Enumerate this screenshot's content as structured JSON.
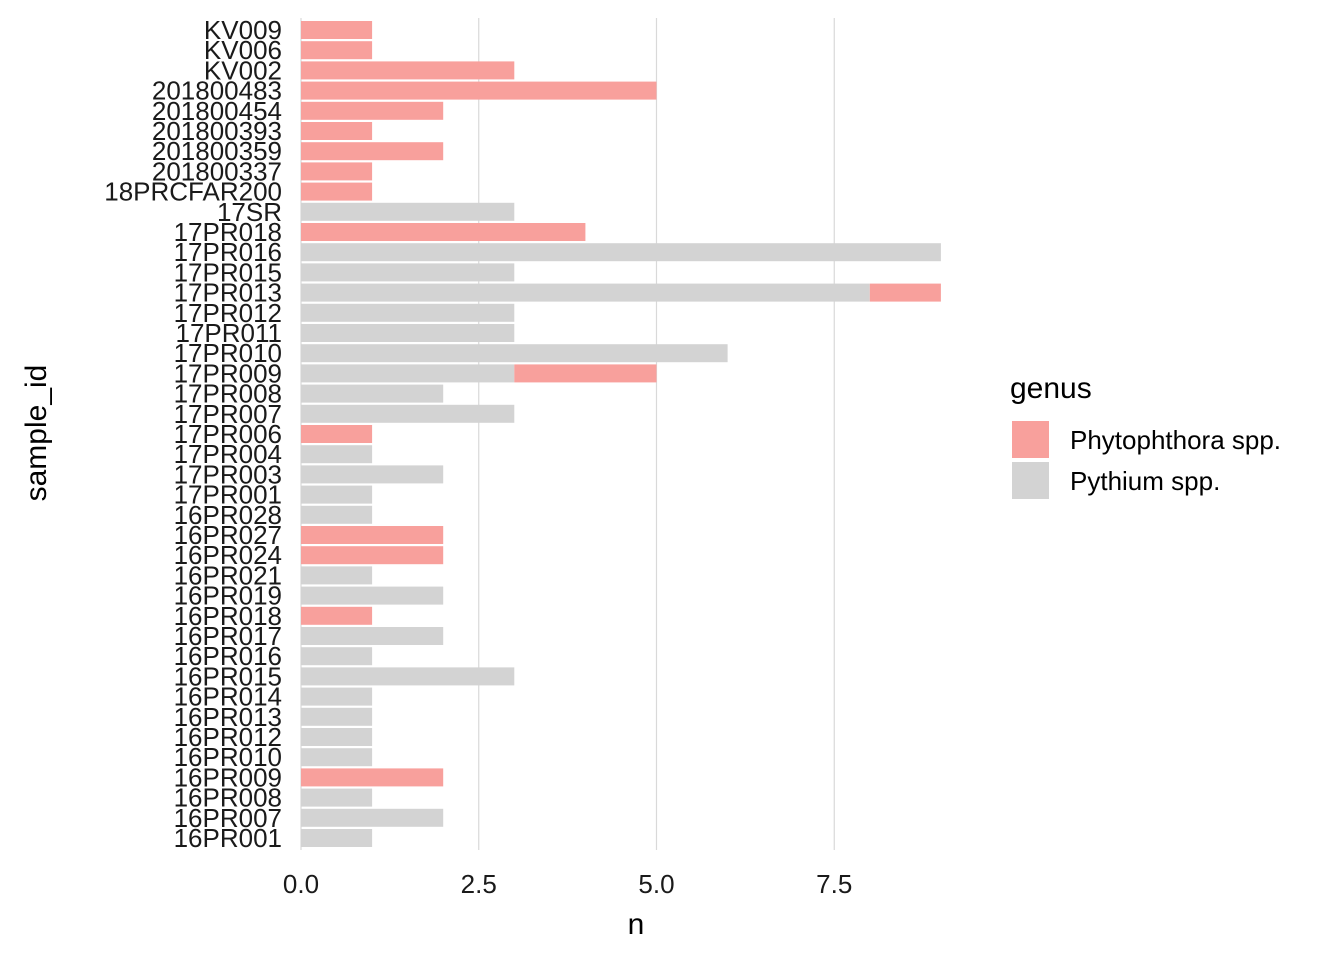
{
  "chart_data": {
    "type": "bar",
    "orientation": "horizontal",
    "stacked": true,
    "xlabel": "n",
    "ylabel": "sample_id",
    "xlim": [
      0,
      9
    ],
    "x_ticks": [
      0,
      2.5,
      5,
      7.5
    ],
    "x_tick_labels": [
      "0.0",
      "2.5",
      "5.0",
      "7.5"
    ],
    "grid": "vertical major",
    "legend_position": "right",
    "legend_title": "genus",
    "categories": [
      "KV009",
      "KV006",
      "KV002",
      "201800483",
      "201800454",
      "201800393",
      "201800359",
      "201800337",
      "18PRCFAR200",
      "17SR",
      "17PR018",
      "17PR016",
      "17PR015",
      "17PR013",
      "17PR012",
      "17PR011",
      "17PR010",
      "17PR009",
      "17PR008",
      "17PR007",
      "17PR006",
      "17PR004",
      "17PR003",
      "17PR001",
      "16PR028",
      "16PR027",
      "16PR024",
      "16PR021",
      "16PR019",
      "16PR018",
      "16PR017",
      "16PR016",
      "16PR015",
      "16PR014",
      "16PR013",
      "16PR012",
      "16PR010",
      "16PR009",
      "16PR008",
      "16PR007",
      "16PR001"
    ],
    "series": [
      {
        "name": "Pythium spp.",
        "color": "#d3d3d3",
        "values": [
          0,
          0,
          0,
          0,
          0,
          0,
          0,
          0,
          0,
          3,
          0,
          9,
          3,
          8,
          3,
          3,
          6,
          3,
          2,
          3,
          0,
          1,
          2,
          1,
          1,
          0,
          0,
          1,
          2,
          0,
          2,
          1,
          3,
          1,
          1,
          1,
          1,
          0,
          1,
          2,
          1
        ]
      },
      {
        "name": "Phytophthora spp.",
        "color": "#f8a09c",
        "values": [
          1,
          1,
          3,
          5,
          2,
          1,
          2,
          1,
          1,
          0,
          4,
          0,
          0,
          1,
          0,
          0,
          0,
          2,
          0,
          0,
          1,
          0,
          0,
          0,
          0,
          2,
          2,
          0,
          0,
          1,
          0,
          0,
          0,
          0,
          0,
          0,
          0,
          2,
          0,
          0,
          0
        ]
      }
    ],
    "legend_entries": [
      "Phytophthora spp.",
      "Pythium spp."
    ]
  }
}
